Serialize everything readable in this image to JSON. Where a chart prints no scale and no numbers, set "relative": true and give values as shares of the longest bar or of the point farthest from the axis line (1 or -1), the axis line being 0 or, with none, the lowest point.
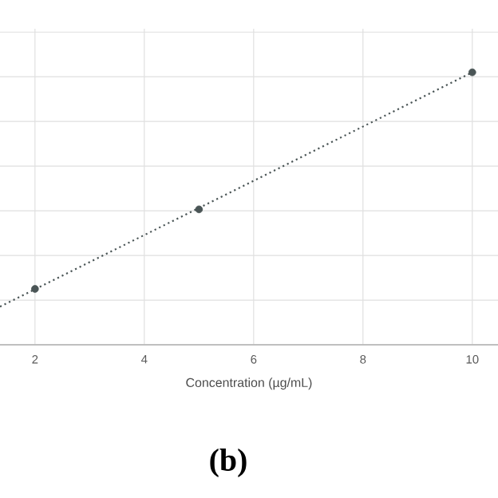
{
  "chart_data": {
    "type": "scatter",
    "xlabel": "Concentration (µg/mL)",
    "relative": true,
    "grid": true,
    "tick_labels": "x",
    "xlim": [
      1.36,
      10.47
    ],
    "xticks": [
      2,
      4,
      6,
      8,
      10
    ],
    "series": [
      {
        "color": "#4a5556",
        "x": [
          2,
          5,
          10
        ],
        "values": [
          0.205,
          0.497,
          1
        ],
        "marker": "circle"
      },
      {
        "type": "line",
        "color": "#4a5556",
        "x": [
          1.36,
          10
        ],
        "values": [
          0.14,
          1
        ],
        "line_style": "dotted",
        "marker": "none"
      }
    ],
    "annotations": [
      "**(b)**"
    ]
  }
}
